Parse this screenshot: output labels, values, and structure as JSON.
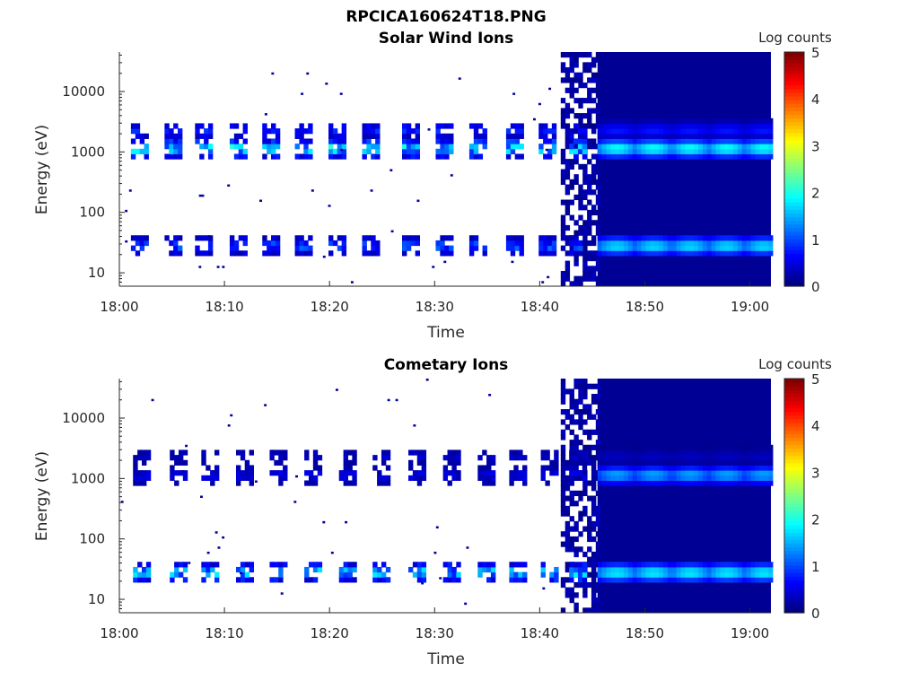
{
  "figure": {
    "title": "RPCICA160624T18.PNG"
  },
  "chart_data": [
    {
      "type": "heatmap",
      "title": "Solar Wind Ions",
      "xlabel": "Time",
      "ylabel": "Energy (eV)",
      "x_ticks": [
        "18:00",
        "18:10",
        "18:20",
        "18:30",
        "18:40",
        "18:50",
        "19:00"
      ],
      "x_range_minutes": [
        0,
        62
      ],
      "y_scale": "log",
      "y_ticks": [
        "10",
        "100",
        "1000",
        "10000"
      ],
      "y_range_eV": [
        6,
        45000
      ],
      "colorbar": {
        "label": "Log counts",
        "ticks": [
          "0",
          "1",
          "2",
          "3",
          "4",
          "5"
        ],
        "range": [
          0,
          5
        ],
        "colormap": "jet"
      },
      "sparse_end_minute": 42,
      "dense_start_minute": 45.5,
      "bands": [
        {
          "name": "low-energy",
          "center_eV": 28,
          "burst_level": 1.2,
          "dense_level": 1.8
        },
        {
          "name": "mid-energy",
          "center_eV": 1150,
          "burst_level": 2.1,
          "dense_level": 2.0
        },
        {
          "name": "upper-energy",
          "center_eV": 2300,
          "burst_level": 0.9,
          "dense_level": 0.7
        }
      ],
      "burst_times_minutes": [
        1.8,
        5.0,
        7.9,
        11.2,
        14.3,
        17.4,
        20.6,
        23.8,
        27.6,
        30.8,
        34.0,
        37.5,
        40.6,
        43.5
      ]
    },
    {
      "type": "heatmap",
      "title": "Cometary Ions",
      "xlabel": "Time",
      "ylabel": "Energy (eV)",
      "x_ticks": [
        "18:00",
        "18:10",
        "18:20",
        "18:30",
        "18:40",
        "18:50",
        "19:00"
      ],
      "x_range_minutes": [
        0,
        62
      ],
      "y_scale": "log",
      "y_ticks": [
        "10",
        "100",
        "1000",
        "10000"
      ],
      "y_range_eV": [
        6,
        45000
      ],
      "colorbar": {
        "label": "Log counts",
        "ticks": [
          "0",
          "1",
          "2",
          "3",
          "4",
          "5"
        ],
        "range": [
          0,
          5
        ],
        "colormap": "jet"
      },
      "sparse_end_minute": 42,
      "dense_start_minute": 45.5,
      "bands": [
        {
          "name": "low-energy",
          "center_eV": 28,
          "burst_level": 1.9,
          "dense_level": 1.9
        },
        {
          "name": "mid-energy",
          "center_eV": 1150,
          "burst_level": 0.6,
          "dense_level": 1.5
        },
        {
          "name": "upper-energy",
          "center_eV": 2300,
          "burst_level": 0.4,
          "dense_level": 0.3
        }
      ],
      "burst_times_minutes": [
        2.0,
        5.5,
        8.5,
        11.8,
        15.0,
        18.3,
        21.6,
        24.8,
        28.2,
        31.5,
        34.8,
        37.8,
        40.8,
        43.5
      ]
    }
  ]
}
